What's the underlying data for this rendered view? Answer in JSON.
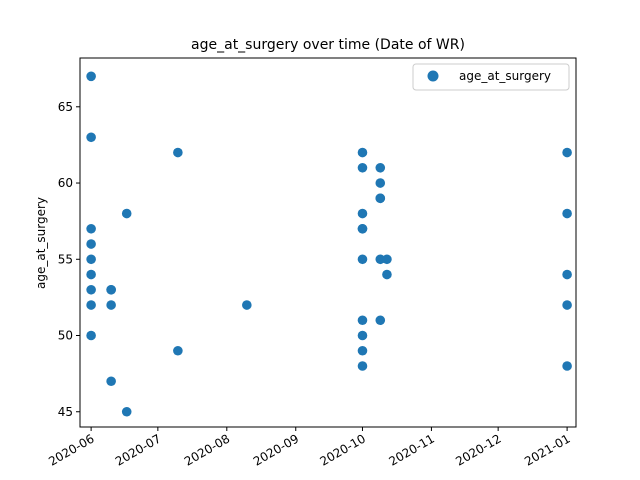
{
  "chart_data": {
    "type": "scatter",
    "title": "age_at_surgery over time (Date of WR)",
    "xlabel": "",
    "ylabel": "age_at_surgery",
    "xlim": [
      "2020-05-27",
      "2021-01-05"
    ],
    "ylim": [
      44,
      68.2
    ],
    "x_ticks": [
      "2020-06",
      "2020-07",
      "2020-08",
      "2020-09",
      "2020-10",
      "2020-11",
      "2020-12",
      "2021-01"
    ],
    "y_ticks": [
      45,
      50,
      55,
      60,
      65
    ],
    "legend": {
      "position": "top-right",
      "entries": [
        "age_at_surgery"
      ]
    },
    "grid": false,
    "color": "#1f77b4",
    "series": [
      {
        "name": "age_at_surgery",
        "points": [
          [
            "2020-06-01",
            67
          ],
          [
            "2020-06-01",
            63
          ],
          [
            "2020-06-01",
            57
          ],
          [
            "2020-06-01",
            56
          ],
          [
            "2020-06-01",
            55
          ],
          [
            "2020-06-01",
            54
          ],
          [
            "2020-06-01",
            53
          ],
          [
            "2020-06-01",
            52
          ],
          [
            "2020-06-01",
            50
          ],
          [
            "2020-06-10",
            53
          ],
          [
            "2020-06-10",
            52
          ],
          [
            "2020-06-10",
            47
          ],
          [
            "2020-06-10",
            53
          ],
          [
            "2020-06-17",
            58
          ],
          [
            "2020-06-17",
            45
          ],
          [
            "2020-07-10",
            62
          ],
          [
            "2020-07-10",
            49
          ],
          [
            "2020-08-10",
            52
          ],
          [
            "2020-10-01",
            62
          ],
          [
            "2020-10-01",
            61
          ],
          [
            "2020-10-01",
            58
          ],
          [
            "2020-10-01",
            57
          ],
          [
            "2020-10-01",
            57
          ],
          [
            "2020-10-01",
            55
          ],
          [
            "2020-10-01",
            51
          ],
          [
            "2020-10-01",
            50
          ],
          [
            "2020-10-01",
            49
          ],
          [
            "2020-10-01",
            48
          ],
          [
            "2020-10-09",
            61
          ],
          [
            "2020-10-09",
            60
          ],
          [
            "2020-10-09",
            59
          ],
          [
            "2020-10-09",
            59
          ],
          [
            "2020-10-09",
            55
          ],
          [
            "2020-10-09",
            51
          ],
          [
            "2020-10-12",
            55
          ],
          [
            "2020-10-12",
            54
          ],
          [
            "2021-01-01",
            62
          ],
          [
            "2021-01-01",
            58
          ],
          [
            "2021-01-01",
            54
          ],
          [
            "2021-01-01",
            52
          ],
          [
            "2021-01-01",
            48
          ]
        ]
      }
    ]
  }
}
